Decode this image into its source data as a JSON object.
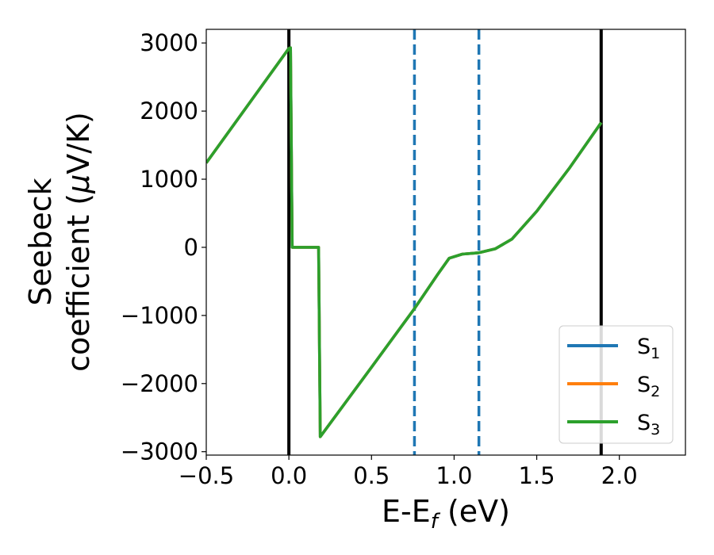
{
  "chart_data": {
    "type": "line",
    "xlabel_main": "E-E",
    "xlabel_sub": "f",
    "xlabel_unit": " (eV)",
    "ylabel_line1": "Seebeck",
    "ylabel_line2": "coefficient  (",
    "ylabel_mu": "μ",
    "ylabel_unit": "V/K)",
    "xlim": [
      -0.5,
      2.4
    ],
    "ylim": [
      -3050,
      3200
    ],
    "xticks": [
      -0.5,
      0.0,
      0.5,
      1.0,
      1.5,
      2.0
    ],
    "xtick_labels": [
      "−0.5",
      "0.0",
      "0.5",
      "1.0",
      "1.5",
      "2.0"
    ],
    "yticks": [
      3000,
      2000,
      1000,
      0,
      -1000,
      -2000,
      -3000
    ],
    "ytick_labels": [
      "3000",
      "2000",
      "1000",
      "0",
      "−1000",
      "−2000",
      "−3000"
    ],
    "grid": false,
    "legend_position": "bottom-right",
    "series": [
      {
        "name": "S1",
        "label_main": "S",
        "label_sub": "1",
        "color": "#1f77b4",
        "points": [
          [
            -0.5,
            1240
          ],
          [
            0.0,
            2920
          ],
          [
            0.01,
            2930
          ],
          [
            0.02,
            0
          ],
          [
            0.18,
            0
          ],
          [
            0.19,
            -2780
          ],
          [
            0.5,
            -1760
          ],
          [
            0.76,
            -900
          ],
          [
            0.9,
            -400
          ],
          [
            0.97,
            -160
          ],
          [
            1.05,
            -100
          ],
          [
            1.15,
            -80
          ],
          [
            1.25,
            -20
          ],
          [
            1.35,
            120
          ],
          [
            1.5,
            530
          ],
          [
            1.7,
            1170
          ],
          [
            1.89,
            1830
          ]
        ]
      },
      {
        "name": "S2",
        "label_main": "S",
        "label_sub": "2",
        "color": "#ff7f0e",
        "points": [
          [
            -0.5,
            1240
          ],
          [
            0.0,
            2920
          ],
          [
            0.01,
            2930
          ],
          [
            0.02,
            0
          ],
          [
            0.18,
            0
          ],
          [
            0.19,
            -2780
          ],
          [
            0.5,
            -1760
          ],
          [
            0.76,
            -900
          ],
          [
            0.9,
            -400
          ],
          [
            0.97,
            -160
          ],
          [
            1.05,
            -100
          ],
          [
            1.15,
            -80
          ],
          [
            1.25,
            -20
          ],
          [
            1.35,
            120
          ],
          [
            1.5,
            530
          ],
          [
            1.7,
            1170
          ],
          [
            1.89,
            1830
          ]
        ]
      },
      {
        "name": "S3",
        "label_main": "S",
        "label_sub": "3",
        "color": "#2ca02c",
        "points": [
          [
            -0.5,
            1240
          ],
          [
            0.0,
            2920
          ],
          [
            0.01,
            2930
          ],
          [
            0.02,
            0
          ],
          [
            0.18,
            0
          ],
          [
            0.19,
            -2780
          ],
          [
            0.5,
            -1760
          ],
          [
            0.76,
            -900
          ],
          [
            0.9,
            -400
          ],
          [
            0.97,
            -160
          ],
          [
            1.05,
            -100
          ],
          [
            1.15,
            -80
          ],
          [
            1.25,
            -20
          ],
          [
            1.35,
            120
          ],
          [
            1.5,
            530
          ],
          [
            1.7,
            1170
          ],
          [
            1.89,
            1830
          ]
        ]
      }
    ],
    "vlines": [
      {
        "x": 0.0,
        "style": "solid",
        "color": "#000000"
      },
      {
        "x": 1.89,
        "style": "solid",
        "color": "#000000"
      },
      {
        "x": 0.76,
        "style": "dashed",
        "color": "#1f77b4"
      },
      {
        "x": 1.15,
        "style": "dashed",
        "color": "#1f77b4"
      }
    ]
  }
}
